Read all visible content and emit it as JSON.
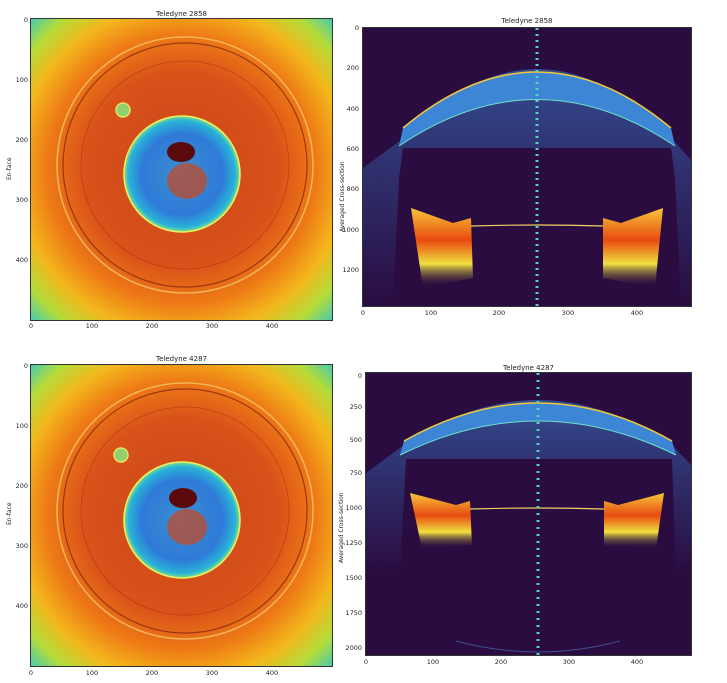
{
  "panels": [
    {
      "title": "Teledyne 2858",
      "ylabel": "En-face",
      "xticks": [
        "0",
        "100",
        "200",
        "300",
        "400"
      ],
      "yticks": [
        "0",
        "100",
        "200",
        "300",
        "400"
      ]
    },
    {
      "title": "Teledyne 2858",
      "ylabel": "Averaged Cross-section",
      "xticks": [
        "0",
        "100",
        "200",
        "300",
        "400"
      ],
      "yticks": [
        "0",
        "200",
        "400",
        "600",
        "800",
        "1000",
        "1200"
      ]
    },
    {
      "title": "Teledyne 4287",
      "ylabel": "En-face",
      "xticks": [
        "0",
        "100",
        "200",
        "300",
        "400"
      ],
      "yticks": [
        "0",
        "100",
        "200",
        "300",
        "400"
      ]
    },
    {
      "title": "Teledyne 4287",
      "ylabel": "Averaged Cross-section",
      "xticks": [
        "0",
        "100",
        "200",
        "300",
        "400"
      ],
      "yticks": [
        "0",
        "250",
        "500",
        "750",
        "1000",
        "1250",
        "1500",
        "1750",
        "2000"
      ]
    }
  ]
}
